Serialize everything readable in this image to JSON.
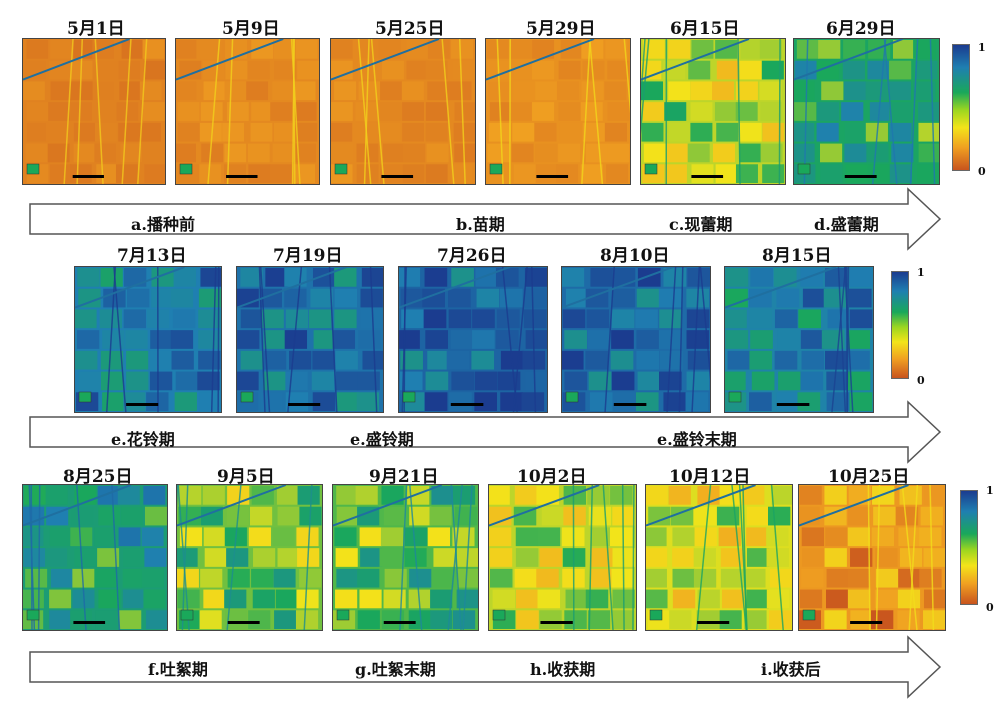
{
  "rows": [
    {
      "kind": "early",
      "dates": [
        "5月1日",
        "5月9日",
        "5月25日",
        "5月29日",
        "6月15日",
        "6月29日"
      ],
      "stages": [
        "a.播种前",
        "b.苗期",
        "c.现蕾期",
        "d.盛蕾期"
      ],
      "colorbar": {
        "max": "1",
        "min": "0"
      }
    },
    {
      "kind": "mid",
      "dates": [
        "7月13日",
        "7月19日",
        "7月26日",
        "8月10日",
        "8月15日"
      ],
      "stages": [
        "e.花铃期",
        "e.盛铃期",
        "e.盛铃末期"
      ],
      "colorbar": {
        "max": "1",
        "min": "0"
      }
    },
    {
      "kind": "late",
      "dates": [
        "8月25日",
        "9月5日",
        "9月21日",
        "10月2日",
        "10月12日",
        "10月25日"
      ],
      "stages": [
        "f.吐絮期",
        "g.吐絮末期",
        "h.收获期",
        "i.收获后"
      ],
      "colorbar": {
        "max": "1",
        "min": "0"
      }
    }
  ],
  "palette": {
    "ndvi_low": "#c8541e",
    "ndvi_midlow": "#f0a021",
    "ndvi_mid": "#f3e41a",
    "ndvi_midhigh": "#1aa85a",
    "ndvi_high": "#1b3c8f"
  }
}
